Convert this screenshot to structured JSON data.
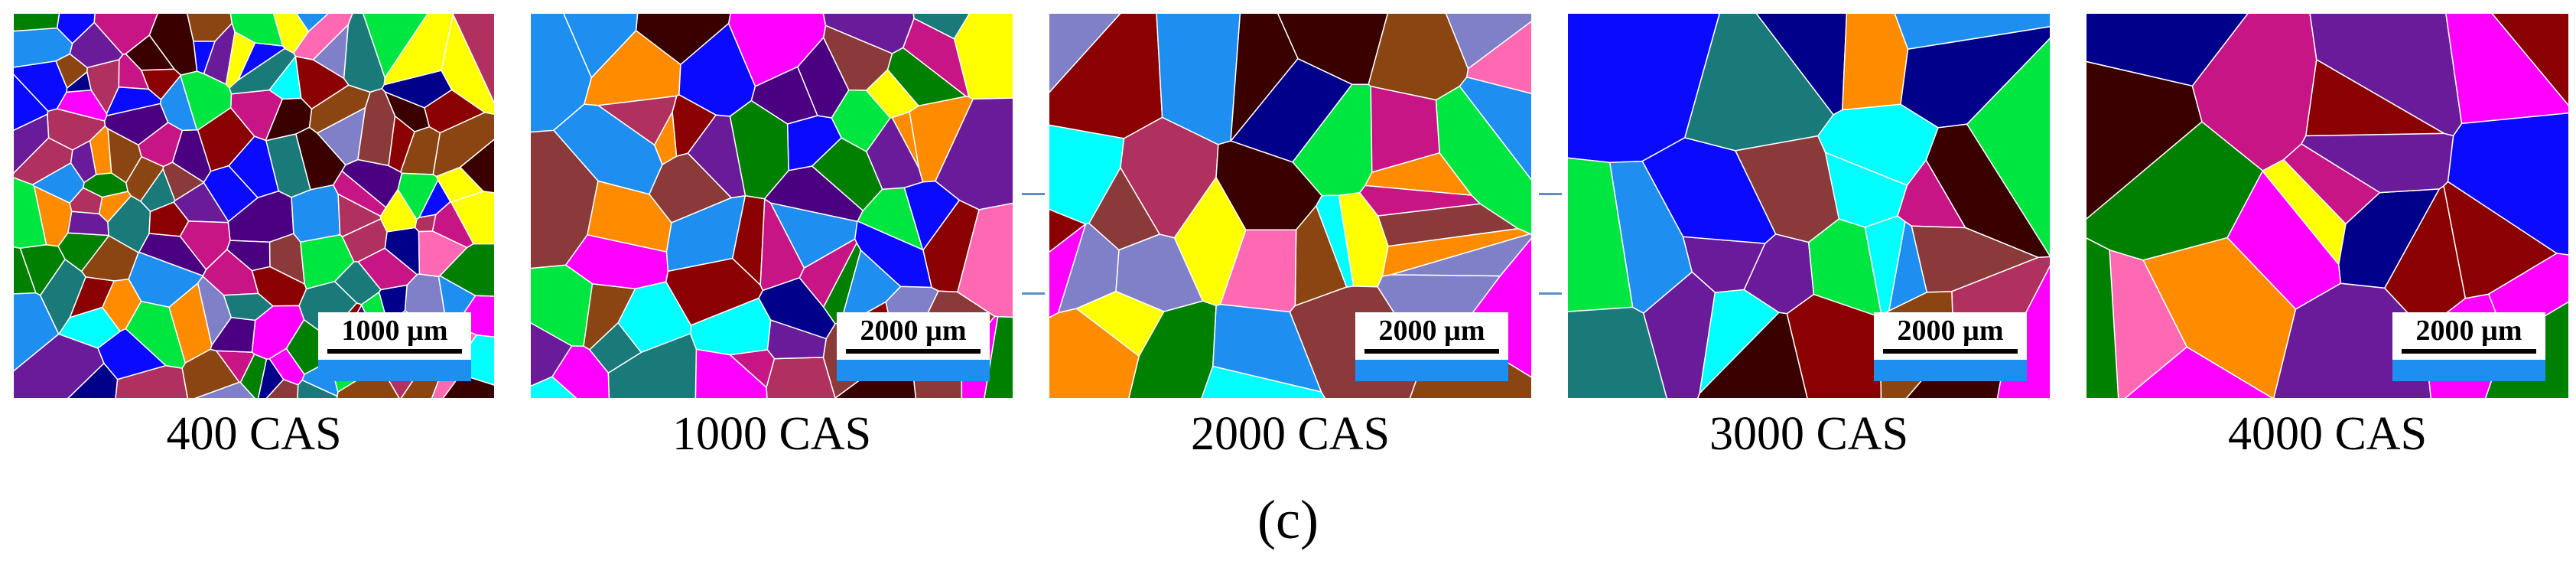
{
  "panels": [
    {
      "caption": "400 CAS",
      "scale_label": "1000 µm"
    },
    {
      "caption": "1000 CAS",
      "scale_label": "2000 µm"
    },
    {
      "caption": "2000 CAS",
      "scale_label": "2000 µm"
    },
    {
      "caption": "3000 CAS",
      "scale_label": "2000 µm"
    },
    {
      "caption": "4000 CAS",
      "scale_label": "2000 µm"
    }
  ],
  "figure_label": "(c)",
  "grain_colors": [
    "#1a7a7a",
    "#ff8c00",
    "#1e8ff0",
    "#6a1b9a",
    "#8b0000",
    "#3a0000",
    "#00e640",
    "#ff00ff",
    "#0a0aff",
    "#8080c8",
    "#00ffff",
    "#ff69b4",
    "#8b4513",
    "#c71585",
    "#00008b",
    "#ffff00",
    "#008000",
    "#8b3a3a",
    "#4b0082",
    "#b03060"
  ]
}
